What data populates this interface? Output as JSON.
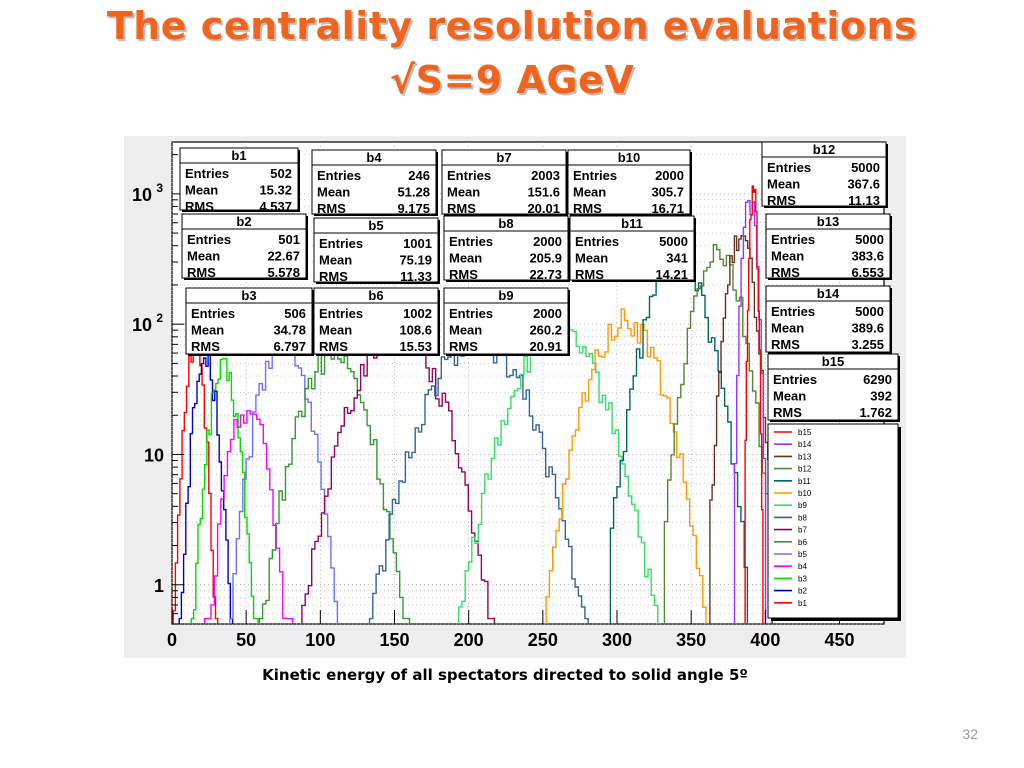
{
  "slide": {
    "title_line1": "The centrality resolution evaluations",
    "title_line2": "√S=9 AGeV",
    "caption": "Kinetic energy of all spectators directed to solid angle 5º",
    "page_number": "32"
  },
  "chart_data": {
    "type": "histogram",
    "x_ticks": [
      "0",
      "50",
      "100",
      "150",
      "200",
      "250",
      "300",
      "350",
      "400",
      "450"
    ],
    "x_range": [
      0,
      480
    ],
    "y_scale": "log",
    "y_range": [
      0.5,
      2500
    ],
    "y_ticks": [
      {
        "v": 1,
        "label": "1"
      },
      {
        "v": 10,
        "label": "10"
      },
      {
        "v": 100,
        "label": "10",
        "exp": "2"
      },
      {
        "v": 1000,
        "label": "10",
        "exp": "3"
      }
    ],
    "grid": true,
    "legend_position": "bottom-right",
    "stat_labels": [
      "Entries",
      "Mean",
      "RMS"
    ],
    "series": [
      {
        "name": "b1",
        "entries": "502",
        "mean": "15.32",
        "rms": "4.537",
        "color": "#ff0000"
      },
      {
        "name": "b2",
        "entries": "501",
        "mean": "22.67",
        "rms": "5.578",
        "color": "#0000cc"
      },
      {
        "name": "b3",
        "entries": "506",
        "mean": "34.78",
        "rms": "6.797",
        "color": "#00dd00"
      },
      {
        "name": "b4",
        "entries": "246",
        "mean": "51.28",
        "rms": "9.175",
        "color": "#ff00ff"
      },
      {
        "name": "b5",
        "entries": "1001",
        "mean": "75.19",
        "rms": "11.33",
        "color": "#7070ff"
      },
      {
        "name": "b6",
        "entries": "1002",
        "mean": "108.6",
        "rms": "15.53",
        "color": "#339933"
      },
      {
        "name": "b7",
        "entries": "2003",
        "mean": "151.6",
        "rms": "20.01",
        "color": "#990066"
      },
      {
        "name": "b8",
        "entries": "2000",
        "mean": "205.9",
        "rms": "22.73",
        "color": "#336699"
      },
      {
        "name": "b9",
        "entries": "2000",
        "mean": "260.2",
        "rms": "20.91",
        "color": "#33dd66"
      },
      {
        "name": "b10",
        "entries": "2000",
        "mean": "305.7",
        "rms": "16.71",
        "color": "#ff9900"
      },
      {
        "name": "b11",
        "entries": "5000",
        "mean": "341",
        "rms": "14.21",
        "color": "#006666"
      },
      {
        "name": "b12",
        "entries": "5000",
        "mean": "367.6",
        "rms": "11.13",
        "color": "#558833"
      },
      {
        "name": "b13",
        "entries": "5000",
        "mean": "383.6",
        "rms": "6.553",
        "color": "#663322"
      },
      {
        "name": "b14",
        "entries": "5000",
        "mean": "389.6",
        "rms": "3.255",
        "color": "#9933ff"
      },
      {
        "name": "b15",
        "entries": "6290",
        "mean": "392",
        "rms": "1.762",
        "color": "#ff0000"
      }
    ]
  }
}
